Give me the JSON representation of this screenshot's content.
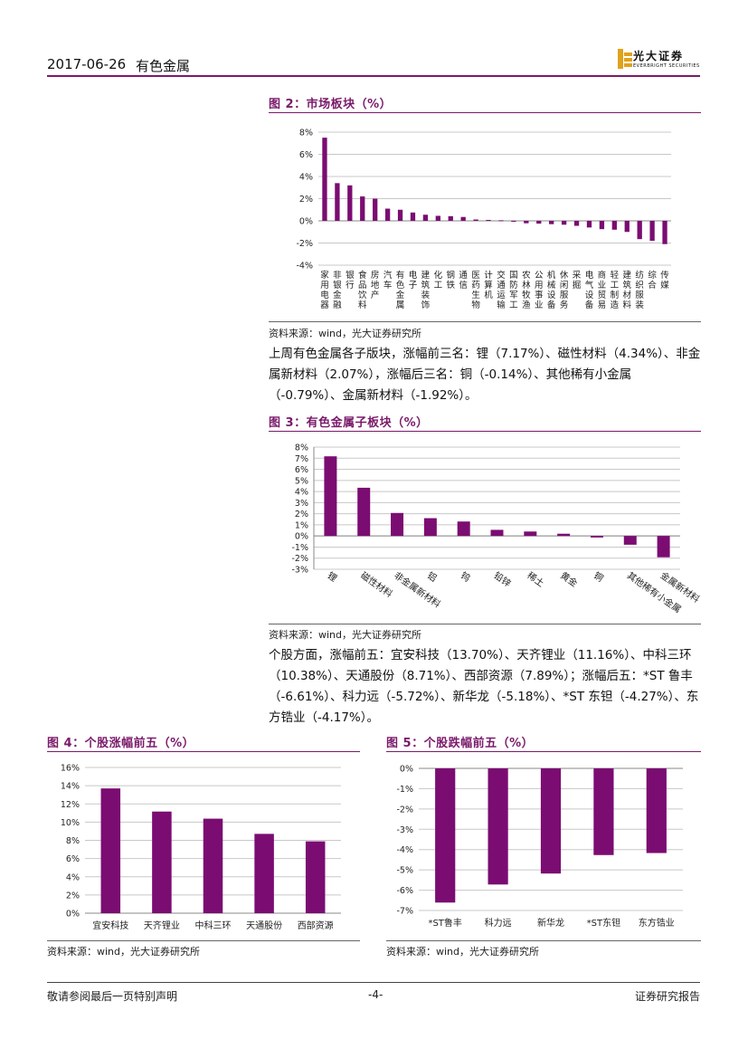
{
  "header": {
    "date": "2017-06-26",
    "sector": "有色金属",
    "logo_name": "光大证券",
    "logo_en": "EVERBRIGHT SECURITIES"
  },
  "figures": {
    "fig2": {
      "title": "图 2：市场板块（%）",
      "source": "资料来源：wind，光大证券研究所"
    },
    "fig3": {
      "title": "图 3：有色金属子板块（%）",
      "source": "资料来源：wind，光大证券研究所"
    },
    "fig4": {
      "title": "图 4：个股涨幅前五（%）",
      "source": "资料来源：wind，光大证券研究所"
    },
    "fig5": {
      "title": "图 5：个股跌幅前五（%）",
      "source": "资料来源：wind，光大证券研究所"
    }
  },
  "text": {
    "para1": "上周有色金属各子版块，涨幅前三名：锂（7.17%）、磁性材料（4.34%）、非金属新材料（2.07%），涨幅后三名：铜（-0.14%）、其他稀有小金属（-0.79%）、金属新材料（-1.92%）。",
    "para2": "个股方面，涨幅前五：宜安科技（13.70%）、天齐锂业（11.16%）、中科三环（10.38%）、天通股份（8.71%）、西部资源（7.89%）；涨幅后五：*ST 鲁丰（-6.61%）、科力远（-5.72%）、新华龙（-5.18%）、*ST 东钽（-4.27%）、东方锆业（-4.17%）。"
  },
  "footer": {
    "left": "敬请参阅最后一页特别声明",
    "page": "-4-",
    "right": "证券研究报告"
  },
  "colors": {
    "bar": "#7b0c72",
    "accent": "#7a1a6a",
    "grid": "#c8c8c8"
  },
  "chart_data": [
    {
      "id": "fig2",
      "type": "bar",
      "categories": [
        "家用电器",
        "非银金融",
        "银行",
        "食品饮料",
        "房地产",
        "汽车",
        "有色金属",
        "电子",
        "建筑装饰",
        "化工",
        "钢铁",
        "通信",
        "医药生物",
        "计算机",
        "交通运输",
        "国防军工",
        "农林牧渔",
        "公用事业",
        "机械设备",
        "休闲服务",
        "采掘",
        "电气设备",
        "商业贸易",
        "轻工制造",
        "建筑材料",
        "纺织服装",
        "综合",
        "传媒"
      ],
      "values": [
        7.5,
        3.4,
        3.2,
        2.2,
        2.0,
        1.1,
        1.0,
        0.75,
        0.55,
        0.45,
        0.42,
        0.35,
        0.12,
        0.08,
        0.05,
        -0.05,
        -0.22,
        -0.25,
        -0.3,
        -0.35,
        -0.45,
        -0.6,
        -0.75,
        -0.8,
        -1.0,
        -1.65,
        -1.8,
        -2.1
      ],
      "ylim": [
        -4,
        8
      ],
      "yticks": [
        -4,
        -2,
        0,
        2,
        4,
        6,
        8
      ],
      "grid": true
    },
    {
      "id": "fig3",
      "type": "bar",
      "categories": [
        "锂",
        "磁性材料",
        "非金属新材料",
        "铝",
        "钨",
        "铅锌",
        "稀土",
        "黄金",
        "铜",
        "其他稀有小金属",
        "金属新材料"
      ],
      "values": [
        7.17,
        4.34,
        2.07,
        1.6,
        1.3,
        0.55,
        0.4,
        0.2,
        -0.14,
        -0.79,
        -1.92
      ],
      "ylim": [
        -3,
        8
      ],
      "yticks": [
        -3,
        -2,
        -1,
        0,
        1,
        2,
        3,
        4,
        5,
        6,
        7,
        8
      ],
      "grid": true
    },
    {
      "id": "fig4",
      "type": "bar",
      "categories": [
        "宜安科技",
        "天齐锂业",
        "中科三环",
        "天通股份",
        "西部资源"
      ],
      "values": [
        13.7,
        11.16,
        10.38,
        8.71,
        7.89
      ],
      "ylim": [
        0,
        16
      ],
      "yticks": [
        0,
        2,
        4,
        6,
        8,
        10,
        12,
        14,
        16
      ],
      "grid": true
    },
    {
      "id": "fig5",
      "type": "bar",
      "categories": [
        "*ST鲁丰",
        "科力远",
        "新华龙",
        "*ST东钽",
        "东方锆业"
      ],
      "values": [
        -6.61,
        -5.72,
        -5.18,
        -4.27,
        -4.17
      ],
      "ylim": [
        -7,
        0
      ],
      "yticks": [
        -7,
        -6,
        -5,
        -4,
        -3,
        -2,
        -1,
        0
      ],
      "grid": true
    }
  ]
}
